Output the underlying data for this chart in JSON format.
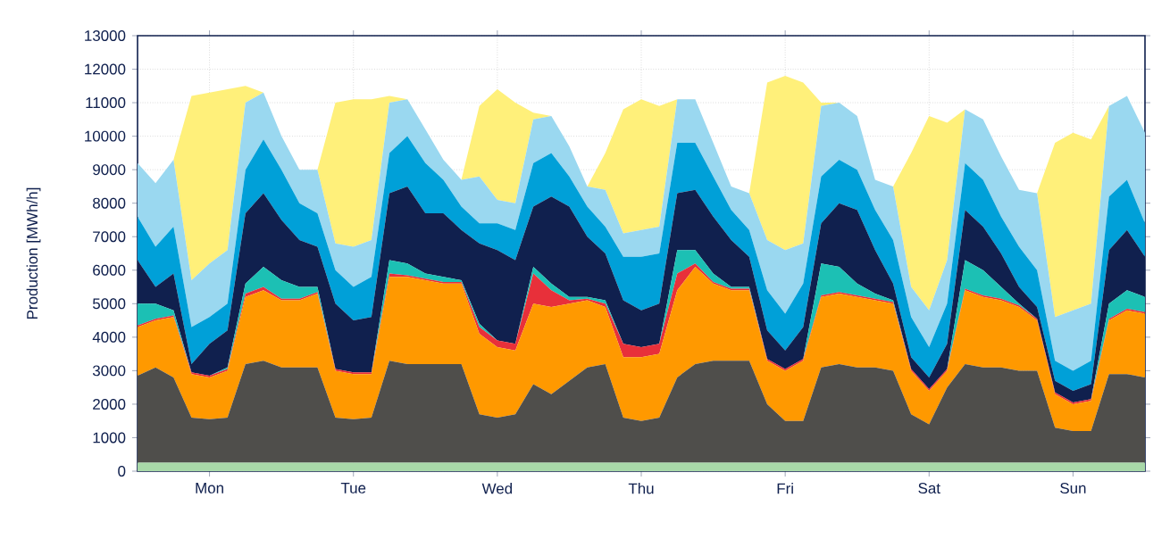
{
  "chart_data": {
    "type": "area",
    "stacked": true,
    "ylabel": "Production [MWh/h]",
    "grid": true,
    "categories": [
      null,
      null,
      null,
      null,
      "Mon",
      null,
      null,
      null,
      null,
      null,
      null,
      null,
      "Tue",
      null,
      null,
      null,
      null,
      null,
      null,
      null,
      "Wed",
      null,
      null,
      null,
      null,
      null,
      null,
      null,
      "Thu",
      null,
      null,
      null,
      null,
      null,
      null,
      null,
      "Fri",
      null,
      null,
      null,
      null,
      null,
      null,
      null,
      "Sat",
      null,
      null,
      null,
      null,
      null,
      null,
      null,
      "Sun",
      null,
      null,
      null,
      null
    ],
    "ylim": [
      0,
      13000
    ],
    "yticks": [
      0,
      1000,
      2000,
      3000,
      4000,
      5000,
      6000,
      7000,
      8000,
      9000,
      10000,
      11000,
      12000,
      13000
    ],
    "series": [
      {
        "color": "#a8d8a8",
        "values": [
          250,
          250,
          250,
          250,
          250,
          250,
          250,
          250,
          250,
          250,
          250,
          250,
          250,
          250,
          250,
          250,
          250,
          250,
          250,
          250,
          250,
          250,
          250,
          250,
          250,
          250,
          250,
          250,
          250,
          250,
          250,
          250,
          250,
          250,
          250,
          250,
          250,
          250,
          250,
          250,
          250,
          250,
          250,
          250,
          250,
          250,
          250,
          250,
          250,
          250,
          250,
          250,
          250,
          250,
          250,
          250,
          250
        ]
      },
      {
        "color": "#4f4e4b",
        "values": [
          2600,
          2850,
          2550,
          1350,
          1300,
          1350,
          2950,
          3050,
          2850,
          2850,
          2850,
          1350,
          1300,
          1350,
          3050,
          2950,
          2950,
          2950,
          2950,
          1450,
          1350,
          1450,
          2350,
          2050,
          2450,
          2850,
          2950,
          1350,
          1250,
          1350,
          2550,
          2950,
          3050,
          3050,
          3050,
          1750,
          1250,
          1250,
          2850,
          2950,
          2850,
          2850,
          2750,
          1450,
          1150,
          2250,
          2950,
          2850,
          2850,
          2750,
          2750,
          1050,
          950,
          950,
          2650,
          2650,
          2550
        ]
      },
      {
        "color": "#ff9900",
        "values": [
          1450,
          1400,
          1800,
          1300,
          1250,
          1400,
          2000,
          2100,
          2000,
          2000,
          2200,
          1400,
          1350,
          1300,
          2500,
          2600,
          2500,
          2400,
          2400,
          2400,
          2100,
          1900,
          2400,
          2600,
          2300,
          2000,
          1700,
          1800,
          1900,
          1900,
          2600,
          2900,
          2300,
          2100,
          2100,
          1300,
          1500,
          1800,
          2100,
          2100,
          2100,
          2000,
          2000,
          1300,
          1000,
          500,
          2200,
          2100,
          2000,
          1900,
          1500,
          1000,
          800,
          900,
          1600,
          1900,
          1900
        ]
      },
      {
        "color": "#e8303a",
        "values": [
          50,
          50,
          50,
          50,
          50,
          50,
          100,
          100,
          50,
          50,
          50,
          50,
          50,
          50,
          100,
          50,
          50,
          50,
          50,
          200,
          200,
          200,
          900,
          500,
          100,
          50,
          100,
          400,
          300,
          300,
          500,
          100,
          50,
          50,
          50,
          50,
          50,
          50,
          50,
          50,
          50,
          50,
          50,
          50,
          50,
          50,
          50,
          50,
          50,
          50,
          50,
          50,
          50,
          50,
          50,
          50,
          50
        ]
      },
      {
        "color": "#1cc0b4",
        "values": [
          650,
          450,
          150,
          0,
          0,
          50,
          300,
          600,
          550,
          350,
          150,
          0,
          0,
          0,
          400,
          350,
          150,
          150,
          50,
          100,
          0,
          0,
          200,
          200,
          100,
          50,
          100,
          0,
          0,
          0,
          700,
          400,
          250,
          50,
          50,
          0,
          0,
          0,
          950,
          750,
          350,
          150,
          50,
          0,
          0,
          0,
          850,
          750,
          350,
          50,
          0,
          0,
          0,
          0,
          450,
          550,
          450
        ]
      },
      {
        "color": "#10204e",
        "values": [
          1300,
          500,
          1100,
          250,
          950,
          1100,
          2100,
          2200,
          1800,
          1400,
          1200,
          1950,
          1550,
          1650,
          2000,
          2300,
          1800,
          1900,
          1500,
          2400,
          2700,
          2500,
          1800,
          2600,
          2700,
          1800,
          1400,
          1300,
          1100,
          1200,
          1700,
          1800,
          1700,
          1400,
          900,
          850,
          550,
          950,
          1200,
          1900,
          2200,
          1300,
          500,
          350,
          350,
          750,
          1500,
          1300,
          1000,
          500,
          350,
          350,
          350,
          450,
          1600,
          1800,
          1200
        ]
      },
      {
        "color": "#00a0d8",
        "values": [
          1300,
          1200,
          1400,
          1100,
          800,
          800,
          1300,
          1600,
          1500,
          1100,
          1000,
          1000,
          1000,
          1200,
          1200,
          1500,
          1500,
          1000,
          700,
          600,
          800,
          900,
          1300,
          1300,
          900,
          900,
          800,
          1300,
          1600,
          1500,
          1500,
          1400,
          1200,
          900,
          800,
          1200,
          1100,
          1300,
          1400,
          1300,
          1200,
          1200,
          1300,
          1200,
          900,
          1200,
          1400,
          1400,
          1100,
          1200,
          1100,
          600,
          600,
          700,
          1600,
          1500,
          1000
        ]
      },
      {
        "color": "#9ad8f0",
        "values": [
          1600,
          1900,
          2000,
          1400,
          1600,
          1600,
          2000,
          1400,
          1000,
          1000,
          1300,
          800,
          1200,
          1100,
          1500,
          1100,
          1000,
          600,
          800,
          1400,
          700,
          800,
          1300,
          1100,
          900,
          600,
          1100,
          700,
          800,
          800,
          1300,
          1300,
          1000,
          700,
          1100,
          1500,
          1900,
          1200,
          2100,
          1700,
          1600,
          900,
          1600,
          900,
          1100,
          1300,
          1600,
          1800,
          1800,
          1700,
          2300,
          1300,
          1800,
          1700,
          2700,
          2500,
          2700
        ]
      },
      {
        "color": "#fff07a",
        "values": [
          0,
          0,
          0,
          5500,
          5100,
          4800,
          500,
          0,
          0,
          0,
          0,
          4200,
          4400,
          4200,
          200,
          0,
          0,
          0,
          0,
          2100,
          3300,
          3000,
          200,
          0,
          0,
          0,
          1100,
          3700,
          3900,
          3600,
          0,
          0,
          0,
          0,
          0,
          4700,
          5200,
          4800,
          100,
          0,
          0,
          0,
          0,
          4000,
          5800,
          4100,
          0,
          0,
          0,
          0,
          0,
          5200,
          5300,
          4900,
          0,
          0,
          0
        ]
      }
    ]
  }
}
